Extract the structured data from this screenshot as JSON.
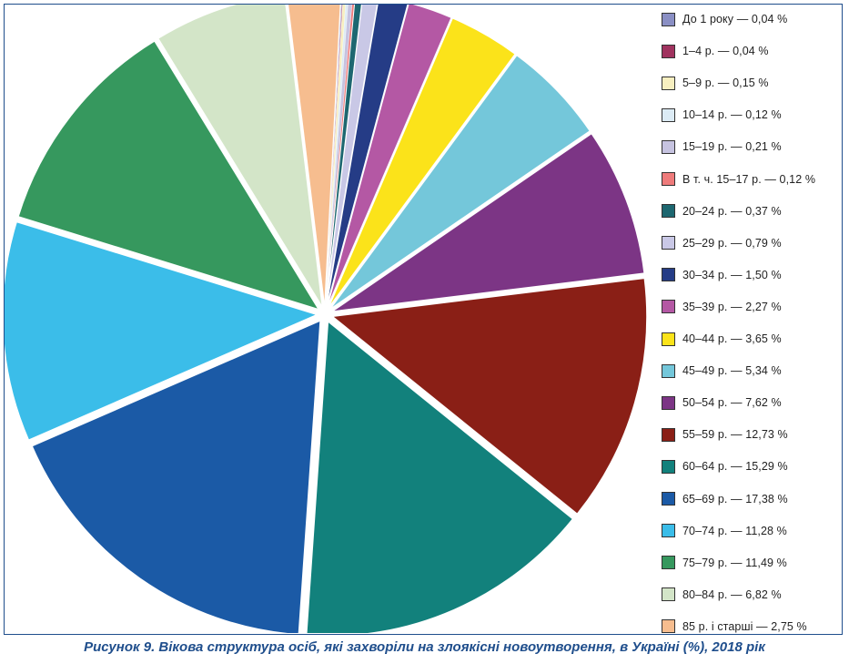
{
  "caption": "Рисунок 9. Вікова структура осіб, які захворіли на злоякісні новоутворення, в Україні (%), 2018 рік",
  "chart_data": {
    "type": "pie",
    "title": "Рисунок 9. Вікова структура осіб, які захворіли на злоякісні новоутворення, в Україні (%), 2018 рік",
    "legend_position": "right",
    "slices": [
      {
        "label": "До 1 року — 0,04 %",
        "value": 0.04,
        "color": "#8a8fc4"
      },
      {
        "label": "1–4 р. — 0,04 %",
        "value": 0.04,
        "color": "#a0335f"
      },
      {
        "label": "5–9 р. — 0,15 %",
        "value": 0.15,
        "color": "#f7efc0"
      },
      {
        "label": "10–14 р. — 0,12 %",
        "value": 0.12,
        "color": "#dcebf5"
      },
      {
        "label": "15–19 р. — 0,21 %",
        "value": 0.21,
        "color": "#c6c3e0"
      },
      {
        "label": "В т. ч. 15–17 р. — 0,12 %",
        "value": 0.12,
        "color": "#ee7b7b"
      },
      {
        "label": "20–24 р. — 0,37 %",
        "value": 0.37,
        "color": "#1d6770"
      },
      {
        "label": "25–29 р. — 0,79 %",
        "value": 0.79,
        "color": "#c9c8e6"
      },
      {
        "label": "30–34 р. — 1,50 %",
        "value": 1.5,
        "color": "#253c86"
      },
      {
        "label": "35–39 р. — 2,27 %",
        "value": 2.27,
        "color": "#b458a4"
      },
      {
        "label": "40–44 р. — 3,65 %",
        "value": 3.65,
        "color": "#fbe31a"
      },
      {
        "label": "45–49 р. — 5,34 %",
        "value": 5.34,
        "color": "#74c7da"
      },
      {
        "label": "50–54 р. — 7,62 %",
        "value": 7.62,
        "color": "#7c3585"
      },
      {
        "label": "55–59 р. — 12,73 %",
        "value": 12.73,
        "color": "#8a1f16"
      },
      {
        "label": "60–64 р. — 15,29 %",
        "value": 15.29,
        "color": "#12817c"
      },
      {
        "label": "65–69 р. — 17,38 %",
        "value": 17.38,
        "color": "#1b5aa6"
      },
      {
        "label": "70–74 р. — 11,28 %",
        "value": 11.28,
        "color": "#3bbde9"
      },
      {
        "label": "75–79 р. — 11,49 %",
        "value": 11.49,
        "color": "#36985e"
      },
      {
        "label": "80–84 р. — 6,82 %",
        "value": 6.82,
        "color": "#d3e5c8"
      },
      {
        "label": "85 р. і старші — 2,75 %",
        "value": 2.75,
        "color": "#f6bd8f"
      }
    ]
  }
}
